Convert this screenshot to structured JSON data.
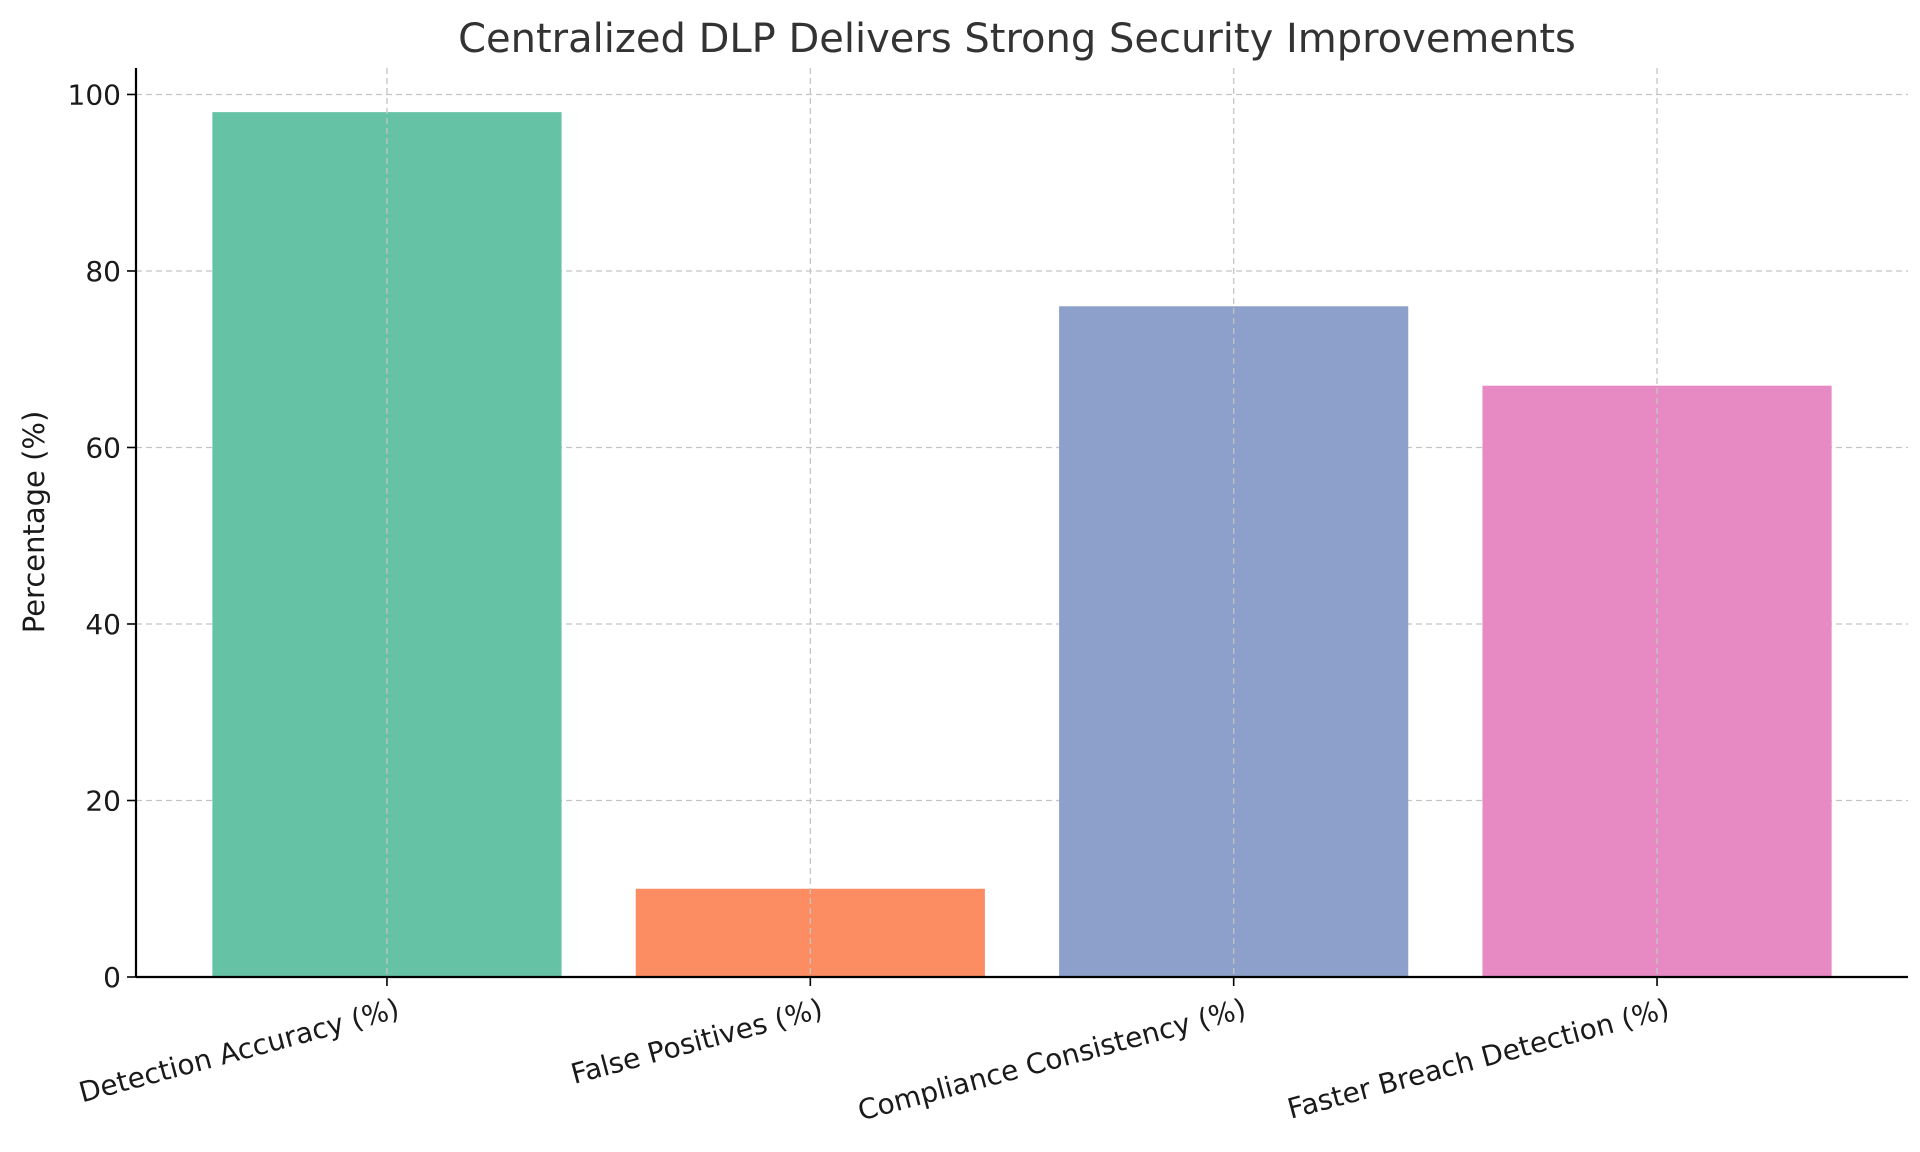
{
  "chart_data": {
    "type": "bar",
    "title": "Centralized DLP Delivers Strong Security Improvements",
    "xlabel": "",
    "ylabel": "Percentage (%)",
    "categories": [
      "Detection Accuracy (%)",
      "False Positives (%)",
      "Compliance Consistency (%)",
      "Faster Breach Detection (%)"
    ],
    "values": [
      98,
      10,
      76,
      67
    ],
    "colors": [
      "#66c2a5",
      "#fc8d62",
      "#8da0cb",
      "#e78ac3"
    ],
    "ylim": [
      0,
      103
    ],
    "yticks": [
      0,
      20,
      40,
      60,
      80,
      100
    ],
    "grid": true,
    "legend": "none"
  }
}
